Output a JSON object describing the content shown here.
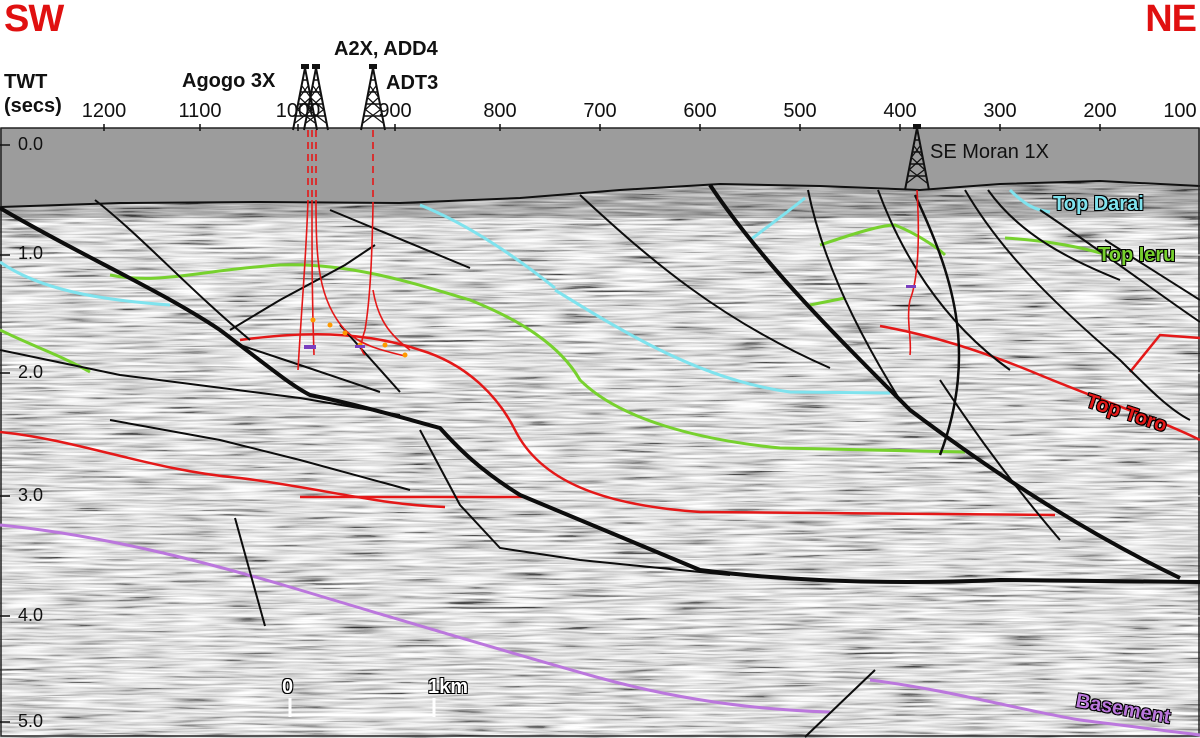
{
  "header": {
    "left_direction": "SW",
    "right_direction": "NE",
    "axis_title_line1": "TWT",
    "axis_title_line2": "(secs)"
  },
  "cdp_axis": {
    "ticks": [
      "1200",
      "1100",
      "1000",
      "900",
      "800",
      "700",
      "600",
      "500",
      "400",
      "300",
      "200",
      "100"
    ]
  },
  "twt_axis": {
    "ticks": [
      "0.0",
      "1.0",
      "2.0",
      "3.0",
      "4.0",
      "5.0"
    ]
  },
  "wells": {
    "agogo": "Agogo 3X",
    "a2x": "A2X, ADD4",
    "adt3": "ADT3",
    "se_moran": "SE Moran 1X"
  },
  "horizons": {
    "top_darai": "Top Darai",
    "top_ieru": "Top Ieru",
    "top_toro": "Top Toro",
    "basement": "Basement"
  },
  "horizon_colors": {
    "darai": "#7fe3ee",
    "ieru": "#77d12e",
    "toro": "#e41818",
    "basement": "#bb77dd"
  },
  "scale_bar": {
    "start_label": "0",
    "end_label": "1km"
  }
}
